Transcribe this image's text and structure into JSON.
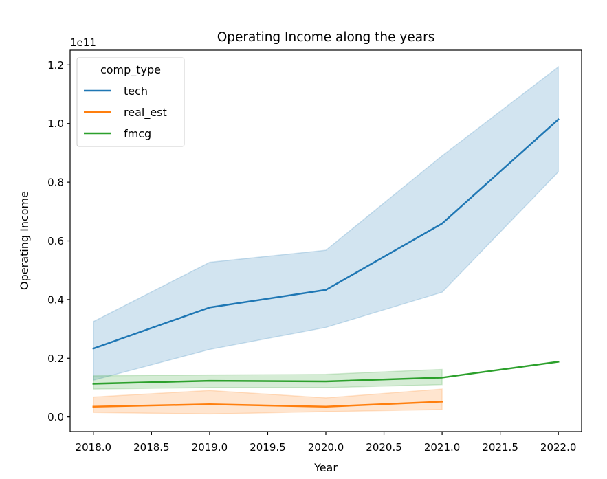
{
  "chart_data": {
    "type": "line",
    "title": "Operating Income along the years",
    "xlabel": "Year",
    "ylabel": "Operating Income",
    "y_offset_label": "1e11",
    "y_scale": 100000000000.0,
    "xlim": [
      2017.8,
      2022.2
    ],
    "ylim": [
      -0.05,
      1.25
    ],
    "x_ticks": [
      2018.0,
      2018.5,
      2019.0,
      2019.5,
      2020.0,
      2020.5,
      2021.0,
      2021.5,
      2022.0
    ],
    "x_tick_labels": [
      "2018.0",
      "2018.5",
      "2019.0",
      "2019.5",
      "2020.0",
      "2020.5",
      "2021.0",
      "2021.5",
      "2022.0"
    ],
    "y_ticks": [
      0.0,
      0.2,
      0.4,
      0.6,
      0.8,
      1.0,
      1.2
    ],
    "y_tick_labels": [
      "0.0",
      "0.2",
      "0.4",
      "0.6",
      "0.8",
      "1.0",
      "1.2"
    ],
    "grid": false,
    "legend": {
      "title": "comp_type",
      "placement": "upper-left"
    },
    "series": [
      {
        "name": "tech",
        "color": "#1f77b4",
        "x": [
          2018,
          2019,
          2020,
          2021,
          2022
        ],
        "y": [
          0.233,
          0.373,
          0.433,
          0.659,
          1.014
        ],
        "ci_low": [
          0.125,
          0.23,
          0.305,
          0.425,
          0.835
        ],
        "ci_high": [
          0.325,
          0.527,
          0.568,
          0.89,
          1.193
        ]
      },
      {
        "name": "real_est",
        "color": "#ff7f0e",
        "x": [
          2018,
          2019,
          2020,
          2021
        ],
        "y": [
          0.035,
          0.043,
          0.035,
          0.052
        ],
        "ci_low": [
          0.015,
          0.01,
          0.018,
          0.025
        ],
        "ci_high": [
          0.068,
          0.09,
          0.065,
          0.095
        ]
      },
      {
        "name": "fmcg",
        "color": "#2ca02c",
        "x": [
          2018,
          2019,
          2020,
          2021,
          2022
        ],
        "y": [
          0.113,
          0.123,
          0.121,
          0.134,
          0.188
        ],
        "ci_low": [
          0.095,
          0.1,
          0.1,
          0.11,
          null
        ],
        "ci_high": [
          0.14,
          0.143,
          0.145,
          0.162,
          null
        ]
      }
    ]
  }
}
